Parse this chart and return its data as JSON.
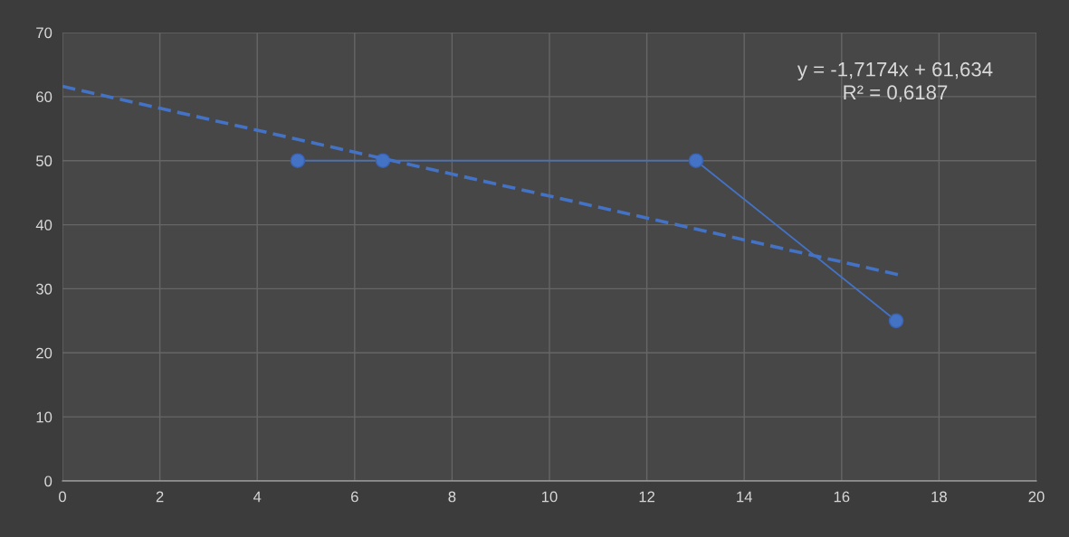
{
  "chart_data": {
    "type": "line",
    "xlim": [
      0,
      20
    ],
    "xticks": [
      0,
      2,
      4,
      6,
      8,
      10,
      12,
      14,
      16,
      18,
      20
    ],
    "ylim": [
      0,
      70
    ],
    "yticks": [
      0,
      10,
      20,
      30,
      40,
      50,
      60,
      70
    ],
    "grid": true,
    "series": [
      {
        "color": "#4472c4",
        "x": [
          4.83,
          6.58,
          13.01,
          17.12
        ],
        "values": [
          50,
          50,
          50,
          25
        ],
        "marker": "circle",
        "line_style": "solid"
      },
      {
        "color": "#4472c4",
        "x": [
          0,
          17.17
        ],
        "values": [
          61.6,
          32.2
        ],
        "marker": "none",
        "line_style": "dashed"
      }
    ],
    "annotations": [
      "y = -1,7174x + 61,634\nR² = 0,6187"
    ]
  }
}
